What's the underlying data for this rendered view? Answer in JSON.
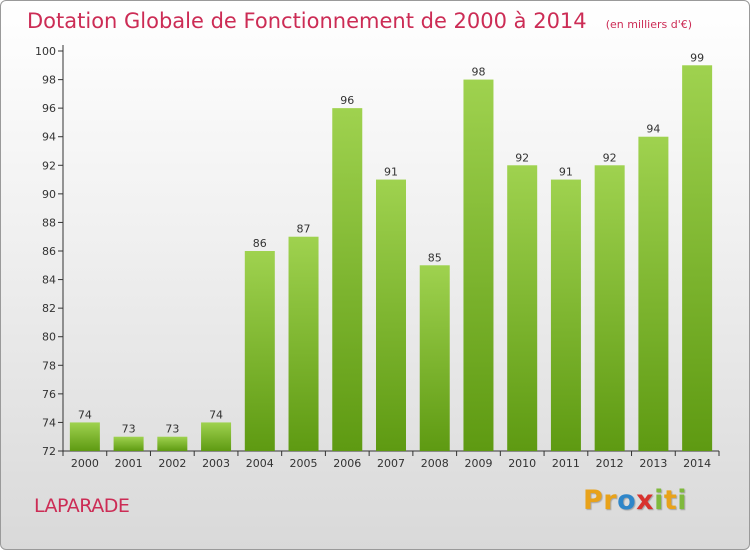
{
  "chart_data": {
    "type": "bar",
    "title": "Dotation Globale de Fonctionnement de 2000 à 2014",
    "subtitle": "(en milliers d'€)",
    "categories": [
      "2000",
      "2001",
      "2002",
      "2003",
      "2004",
      "2005",
      "2006",
      "2007",
      "2008",
      "2009",
      "2010",
      "2011",
      "2012",
      "2013",
      "2014"
    ],
    "values": [
      74,
      73,
      73,
      74,
      86,
      87,
      96,
      91,
      85,
      98,
      92,
      91,
      92,
      94,
      99
    ],
    "xlabel": "",
    "ylabel": "",
    "ylim": [
      72,
      100
    ],
    "yticks": [
      72,
      74,
      76,
      78,
      80,
      82,
      84,
      86,
      88,
      90,
      92,
      94,
      96,
      98,
      100
    ],
    "grid": false,
    "legend": "none",
    "bar_color_top": "#9fd24f",
    "bar_color_bottom": "#5e9a12"
  },
  "footer": {
    "commune": "LAPARADE",
    "brand_parts": [
      "Pr",
      "o",
      "x",
      "i",
      "t",
      "i"
    ]
  },
  "colors": {
    "title": "#cc2c55",
    "axis": "#333333"
  }
}
